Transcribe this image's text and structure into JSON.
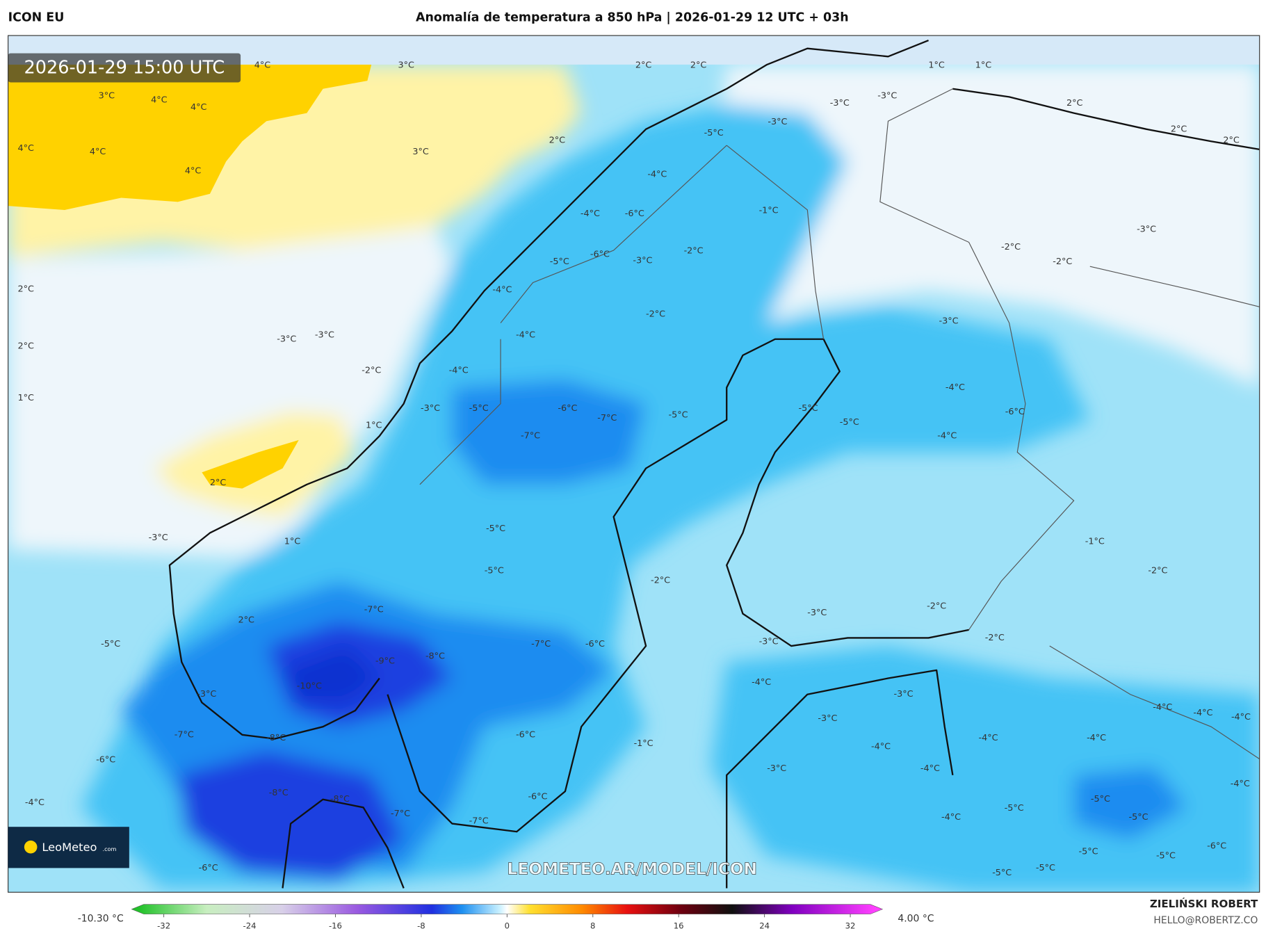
{
  "header": {
    "model": "ICON EU",
    "title": "Anomalía de temperatura a 850 hPa | 2026-01-29 12 UTC + 03h"
  },
  "map": {
    "timestamp": "2026-01-29 15:00 UTC",
    "labels": [
      "4°C",
      "3°C",
      "2°C",
      "2°C",
      "1°C",
      "1°C",
      "3°C",
      "4°C",
      "4°C",
      "2°C",
      "4°C",
      "4°C",
      "3°C",
      "2°C",
      "4°C",
      "2°C",
      "2°C",
      "-3°C",
      "-3°C",
      "-3°C",
      "-5°C",
      "-4°C",
      "-1°C",
      "-4°C",
      "-6°C",
      "-3°C",
      "-6°C",
      "-3°C",
      "-2°C",
      "-5°C",
      "-2°C",
      "-2°C",
      "2°C",
      "-4°C",
      "-2°C",
      "-3°C",
      "-3°C",
      "-4°C",
      "-3°C",
      "2°C",
      "-2°C",
      "-4°C",
      "-4°C",
      "1°C",
      "-3°C",
      "-5°C",
      "-6°C",
      "-7°C",
      "-5°C",
      "-5°C",
      "-5°C",
      "-6°C",
      "1°C",
      "-7°C",
      "-4°C",
      "2°C",
      "-5°C",
      "-3°C",
      "1°C",
      "-1°C",
      "-5°C",
      "-2°C",
      "-2°C",
      "-7°C",
      "-2°C",
      "-3°C",
      "2°C",
      "-2°C",
      "-5°C",
      "-7°C",
      "-6°C",
      "-8°C",
      "-9°C",
      "-3°C",
      "-10°C",
      "-4°C",
      "-3°C",
      "-3°C",
      "-4°C",
      "-4°C",
      "-4°C",
      "-3°C",
      "-7°C",
      "-8°C",
      "-6°C",
      "-4°C",
      "-4°C",
      "-1°C",
      "-4°C",
      "-6°C",
      "-3°C",
      "-4°C",
      "-4°C",
      "-8°C",
      "-8°C",
      "-6°C",
      "-5°C",
      "-4°C",
      "-5°C",
      "-7°C",
      "-7°C",
      "-5°C",
      "-4°C",
      "-6°C",
      "-5°C",
      "-5°C",
      "-6°C",
      "-5°C",
      "-5°C"
    ],
    "watermark": "LEOMETEO.AR/MODEL/ICON",
    "logo_name": "LeoMeteo",
    "logo_suffix": ".com"
  },
  "colorbar": {
    "min_label": "-10.30 °C",
    "max_label": "4.00 °C",
    "lim": [
      -35,
      35
    ],
    "ticks": [
      -32,
      -24,
      -16,
      -8,
      0,
      8,
      16,
      24,
      32
    ]
  },
  "credit": {
    "name": "ZIELIŃSKI ROBERT",
    "email": "HELLO@ROBERTZ.CO"
  }
}
